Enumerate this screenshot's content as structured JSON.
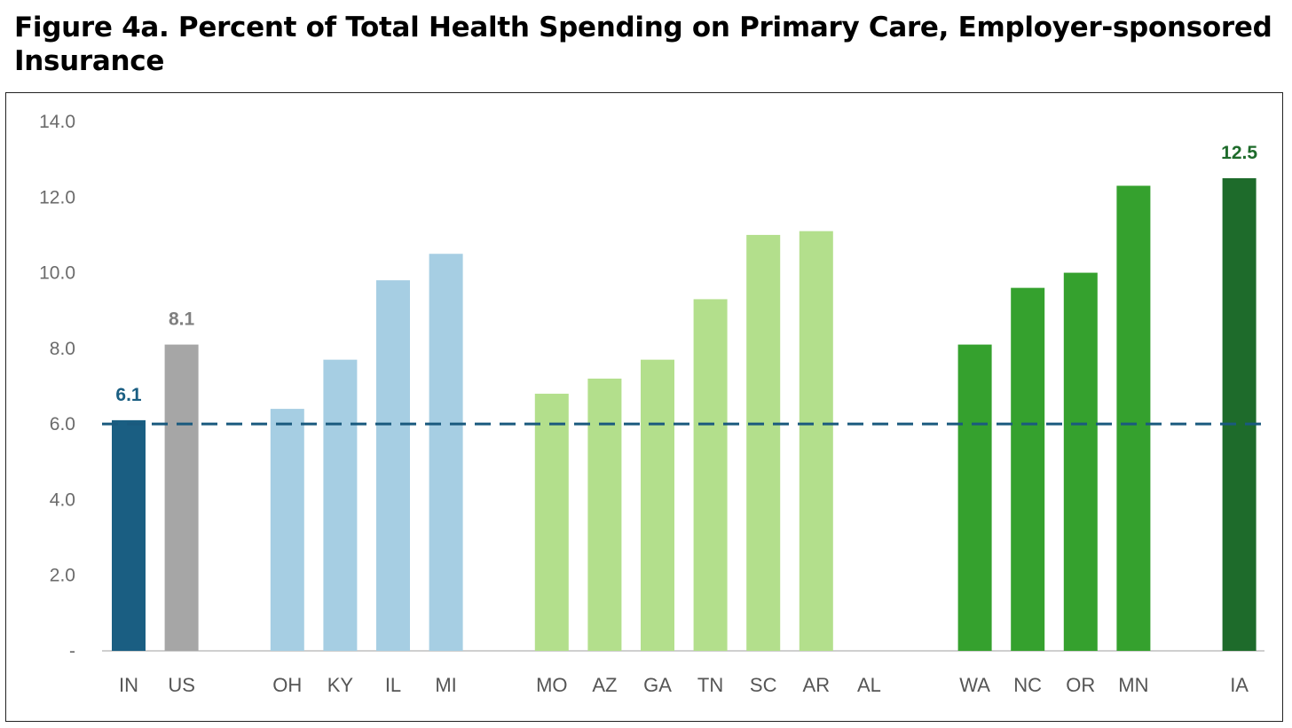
{
  "chart_data": {
    "type": "bar",
    "title": "Figure 4a. Percent of Total Health Spending on Primary Care, Employer-sponsored Insurance",
    "xlabel": "",
    "ylabel": "",
    "ylim": [
      0,
      14
    ],
    "yticks": [
      0,
      2,
      4,
      6,
      8,
      10,
      12,
      14
    ],
    "ytick_labels": [
      "-",
      "2.0",
      "4.0",
      "6.0",
      "8.0",
      "10.0",
      "12.0",
      "14.0"
    ],
    "grid": false,
    "reference_line": {
      "value": 6.0,
      "style": "dashed",
      "color": "#1a5a7e"
    },
    "groups": [
      {
        "color": null,
        "bars": [
          {
            "category": "IN",
            "value": 6.1,
            "color": "#1a5e82",
            "label": "6.1",
            "label_color": "#1a5e82"
          },
          {
            "category": "US",
            "value": 8.1,
            "color": "#a6a6a6",
            "label": "8.1",
            "label_color": "#7f7f7f"
          }
        ]
      },
      {
        "color": "#a6cee3",
        "bars": [
          {
            "category": "OH",
            "value": 6.4
          },
          {
            "category": "KY",
            "value": 7.7
          },
          {
            "category": "IL",
            "value": 9.8
          },
          {
            "category": "MI",
            "value": 10.5
          }
        ]
      },
      {
        "color": "#b3df8c",
        "bars": [
          {
            "category": "MO",
            "value": 6.8
          },
          {
            "category": "AZ",
            "value": 7.2
          },
          {
            "category": "GA",
            "value": 7.7
          },
          {
            "category": "TN",
            "value": 9.3
          },
          {
            "category": "SC",
            "value": 11.0
          },
          {
            "category": "AR",
            "value": 11.1
          },
          {
            "category": "AL",
            "value": null
          }
        ]
      },
      {
        "color": "#35a12e",
        "bars": [
          {
            "category": "WA",
            "value": 8.1
          },
          {
            "category": "NC",
            "value": 9.6
          },
          {
            "category": "OR",
            "value": 10.0
          },
          {
            "category": "MN",
            "value": 12.3
          }
        ]
      },
      {
        "color": null,
        "bars": [
          {
            "category": "IA",
            "value": 12.5,
            "color": "#1e6b2b",
            "label": "12.5",
            "label_color": "#1e6b2b"
          }
        ]
      }
    ]
  }
}
